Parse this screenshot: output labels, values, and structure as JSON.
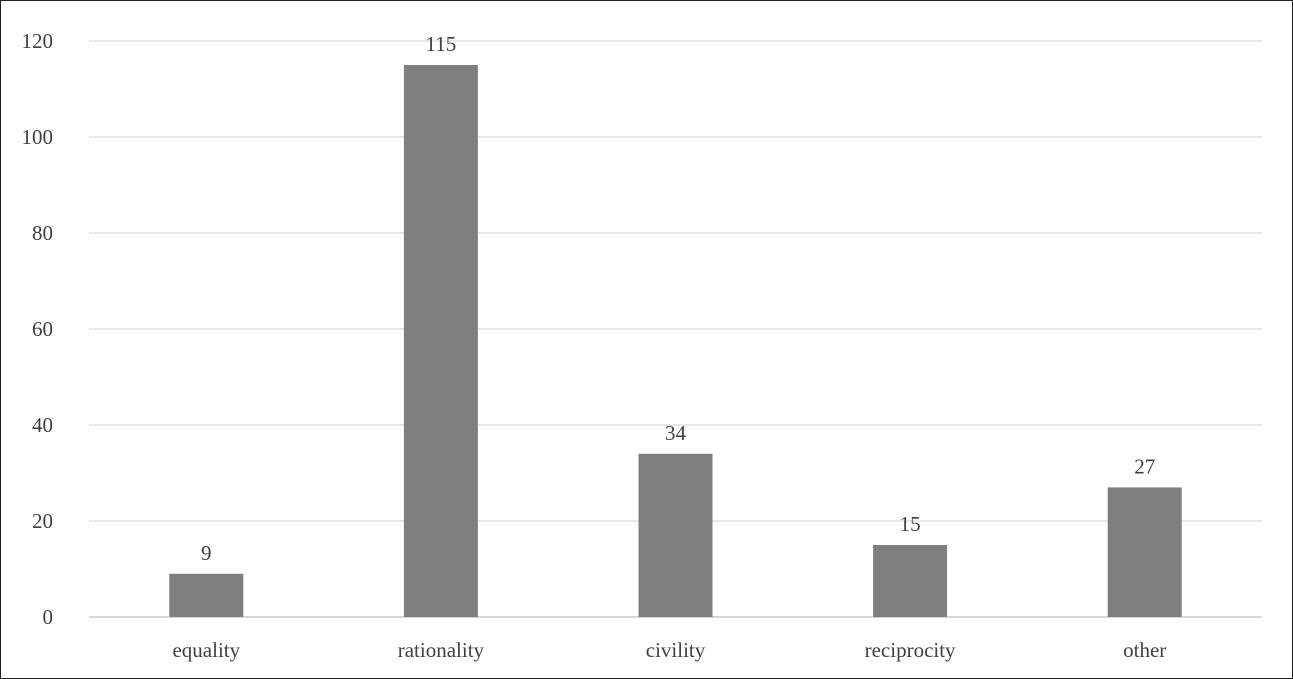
{
  "chart_data": {
    "type": "bar",
    "title": "",
    "xlabel": "",
    "ylabel": "",
    "categories": [
      "equality",
      "rationality",
      "civility",
      "reciprocity",
      "other"
    ],
    "values": [
      9,
      115,
      34,
      15,
      27
    ],
    "data_labels": [
      "9",
      "115",
      "34",
      "15",
      "27"
    ],
    "ylim": [
      0,
      120
    ],
    "yticks": [
      0,
      20,
      40,
      60,
      80,
      100,
      120
    ],
    "ytick_labels": [
      "0",
      "20",
      "40",
      "60",
      "80",
      "100",
      "120"
    ],
    "grid": true,
    "legend": "none",
    "bar_color": "#7f7f7f"
  }
}
